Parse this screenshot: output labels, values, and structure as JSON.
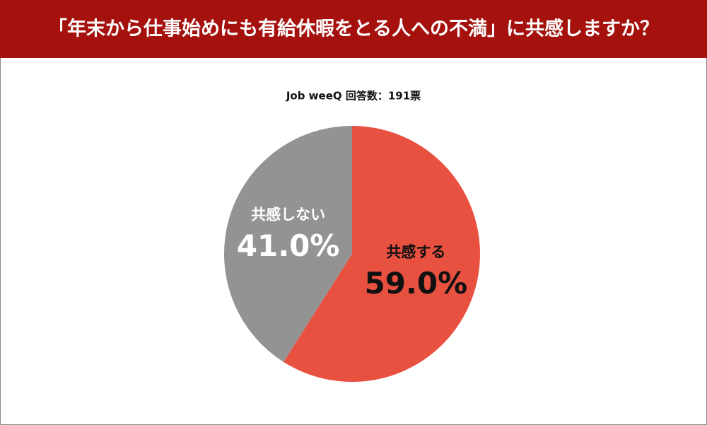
{
  "chart_data": {
    "type": "pie",
    "title": "「年末から仕事始めにも有給休暇をとる人への不満」に共感しますか？",
    "subtitle": "Job weeQ 回答数：191票",
    "categories": [
      "共感する",
      "共感しない"
    ],
    "values": [
      59.0,
      41.0
    ],
    "value_labels": [
      "59.0%",
      "41.0%"
    ],
    "colors": [
      "#e85040",
      "#939393"
    ],
    "label_colors": [
      "#111111",
      "#ffffff"
    ]
  }
}
